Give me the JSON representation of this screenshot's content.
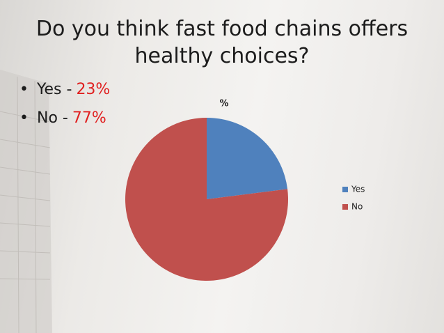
{
  "slide": {
    "title": "Do you think fast food chains offers healthy choices?",
    "bullets": [
      {
        "text": "Yes -",
        "highlight": "23%"
      },
      {
        "text": "No -",
        "highlight": "77%"
      }
    ]
  },
  "chart_data": {
    "type": "pie",
    "title": "%",
    "categories": [
      "Yes",
      "No"
    ],
    "values": [
      23,
      77
    ],
    "colors": [
      "#4f81bd",
      "#c0504d"
    ],
    "legend": "right"
  }
}
